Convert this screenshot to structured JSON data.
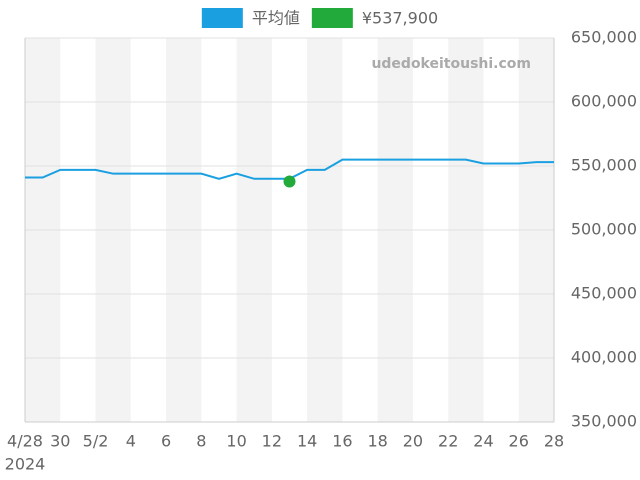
{
  "chart_data": {
    "type": "line",
    "x": [
      "4/28",
      null,
      "30",
      null,
      "5/2",
      null,
      "4",
      null,
      "6",
      null,
      "8",
      null,
      "10",
      null,
      "12",
      null,
      "14",
      null,
      "16",
      null,
      "18",
      null,
      "20",
      null,
      "22",
      null,
      "24",
      null,
      "26",
      null,
      "28"
    ],
    "x_year": "2024",
    "series": [
      {
        "name": "平均値",
        "color": "#1a9fe0",
        "kind": "line",
        "values": [
          541000,
          541000,
          547000,
          547000,
          547000,
          544000,
          544000,
          544000,
          544000,
          544000,
          544000,
          540000,
          544000,
          540000,
          540000,
          540000,
          547000,
          547000,
          555000,
          555000,
          555000,
          555000,
          555000,
          555000,
          555000,
          555000,
          552000,
          552000,
          552000,
          553000,
          553000
        ]
      },
      {
        "name": "¥537,900",
        "color": "#22aa3a",
        "kind": "point",
        "values": [
          null,
          null,
          null,
          null,
          null,
          null,
          null,
          null,
          null,
          null,
          null,
          null,
          null,
          null,
          null,
          537900,
          null,
          null,
          null,
          null,
          null,
          null,
          null,
          null,
          null,
          null,
          null,
          null,
          null,
          null,
          null
        ]
      }
    ],
    "ylim": [
      350000,
      650000
    ],
    "yticks": [
      {
        "value": 350000,
        "label": "350,000"
      },
      {
        "value": 400000,
        "label": "400,000"
      },
      {
        "value": 450000,
        "label": "450,000"
      },
      {
        "value": 500000,
        "label": "500,000"
      },
      {
        "value": 550000,
        "label": "550,000"
      },
      {
        "value": 600000,
        "label": "600,000"
      },
      {
        "value": 650000,
        "label": "650,000"
      }
    ],
    "grid": true,
    "bands": true,
    "legend": "top",
    "watermark": "udedokeitoushi.com"
  }
}
